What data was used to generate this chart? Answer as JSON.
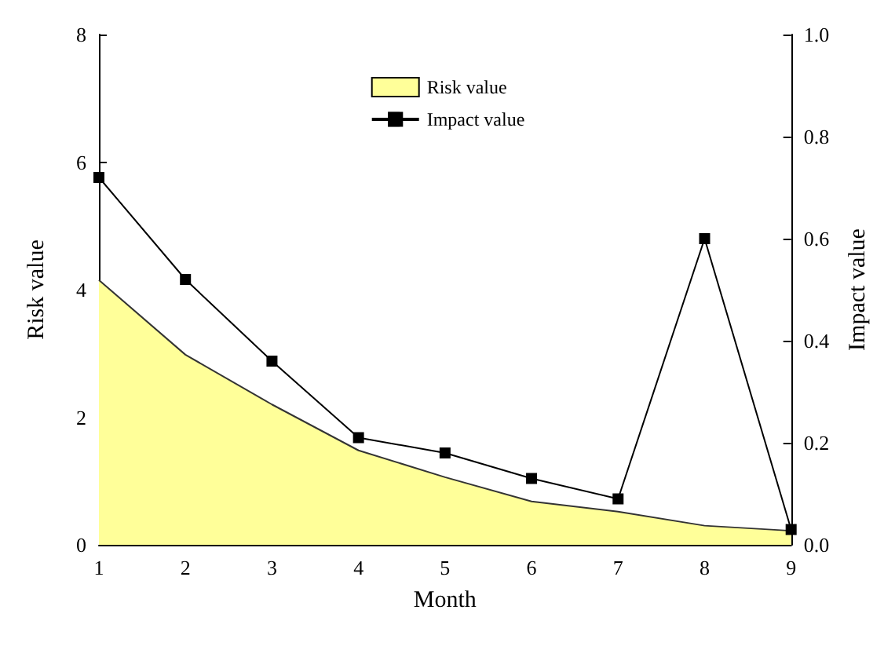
{
  "chart_data": {
    "type": "area",
    "xlabel": "Month",
    "ylabel": "Risk value",
    "y2label": "Impact value",
    "x": [
      1,
      2,
      3,
      4,
      5,
      6,
      7,
      8,
      9
    ],
    "series": [
      {
        "name": "Risk value",
        "color": "#ffff99",
        "values": [
          4.15,
          2.98,
          2.2,
          1.48,
          1.06,
          0.68,
          0.52,
          0.3,
          0.22
        ],
        "marker": "none"
      },
      {
        "name": "Impact value",
        "type": "line",
        "color": "#000000",
        "axis": "y2",
        "values": [
          0.72,
          0.52,
          0.36,
          0.21,
          0.18,
          0.13,
          0.09,
          0.6,
          0.03
        ],
        "marker": "square"
      }
    ],
    "xlim": [
      1,
      9
    ],
    "xticks": [
      1,
      2,
      3,
      4,
      5,
      6,
      7,
      8,
      9
    ],
    "ylim": [
      0,
      8
    ],
    "yticks": [
      0,
      2,
      4,
      6,
      8
    ],
    "y2lim": [
      0,
      1
    ],
    "y2ticks": [
      {
        "value": 0,
        "label": "0.0"
      },
      {
        "value": 0.2,
        "label": "0.2"
      },
      {
        "value": 0.4,
        "label": "0.4"
      },
      {
        "value": 0.6,
        "label": "0.6"
      },
      {
        "value": 0.8,
        "label": "0.8"
      },
      {
        "value": 1,
        "label": "1.0"
      }
    ],
    "grid": false,
    "legend": "top",
    "line_style": "solid"
  }
}
